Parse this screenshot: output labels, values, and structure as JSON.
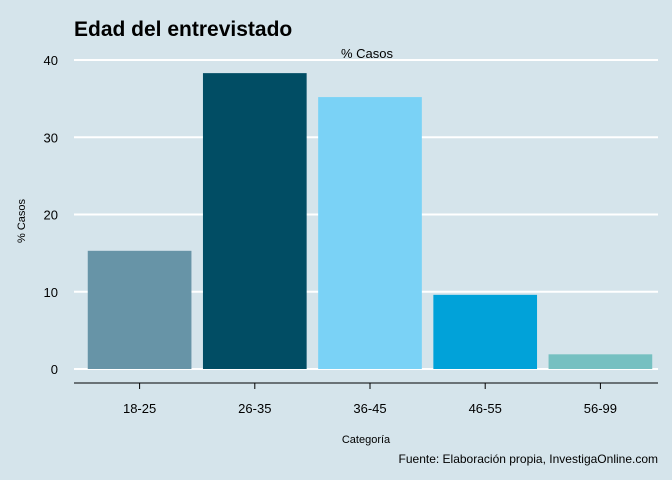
{
  "chart_data": {
    "type": "bar",
    "title": "Edad del entrevistado",
    "subtitle": "% Casos",
    "xlabel": "Categoría",
    "ylabel": "% Casos",
    "caption": "Fuente: Elaboración propia, InvestigaOnline.com",
    "categories": [
      "18-25",
      "26-35",
      "36-45",
      "46-55",
      "56-99"
    ],
    "values": [
      15.3,
      38.3,
      35.2,
      9.6,
      1.9
    ],
    "colors": [
      "#6794a7",
      "#014d64",
      "#7ad2f6",
      "#01a2d9",
      "#76c0c1"
    ],
    "ylim": [
      0,
      40
    ],
    "yticks": [
      0,
      10,
      20,
      30,
      40
    ],
    "grid": true,
    "background": "#d5e4eb"
  }
}
